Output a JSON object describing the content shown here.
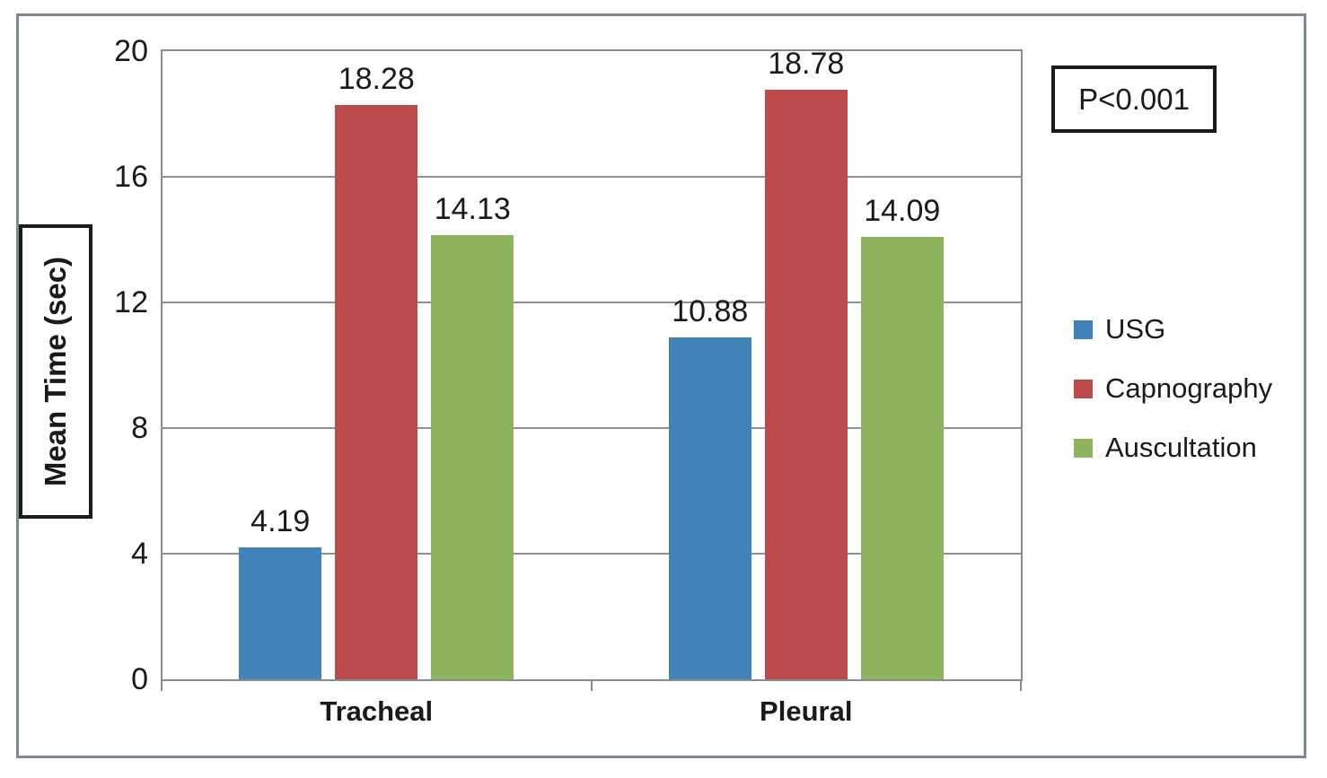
{
  "chart_data": {
    "type": "bar",
    "title": "",
    "ylabel": "Mean Time (sec)",
    "xlabel": "",
    "categories": [
      "Tracheal",
      "Pleural"
    ],
    "series": [
      {
        "name": "USG",
        "color": "#4182b8",
        "values": [
          4.19,
          10.88
        ]
      },
      {
        "name": "Capnography",
        "color": "#bd4b4b",
        "values": [
          18.28,
          18.78
        ]
      },
      {
        "name": "Auscultation",
        "color": "#8db45c",
        "values": [
          14.13,
          14.09
        ]
      }
    ],
    "ylim": [
      0,
      20
    ],
    "yticks": [
      0,
      4,
      8,
      12,
      16,
      20
    ],
    "grid": true,
    "value_labels": true,
    "legend_position": "right",
    "annotation": "P<0.001"
  },
  "colors": {
    "axis": "#848d90",
    "gridline": "#8b9396",
    "frame": "#7d898c",
    "text": "#1a1a1a"
  }
}
